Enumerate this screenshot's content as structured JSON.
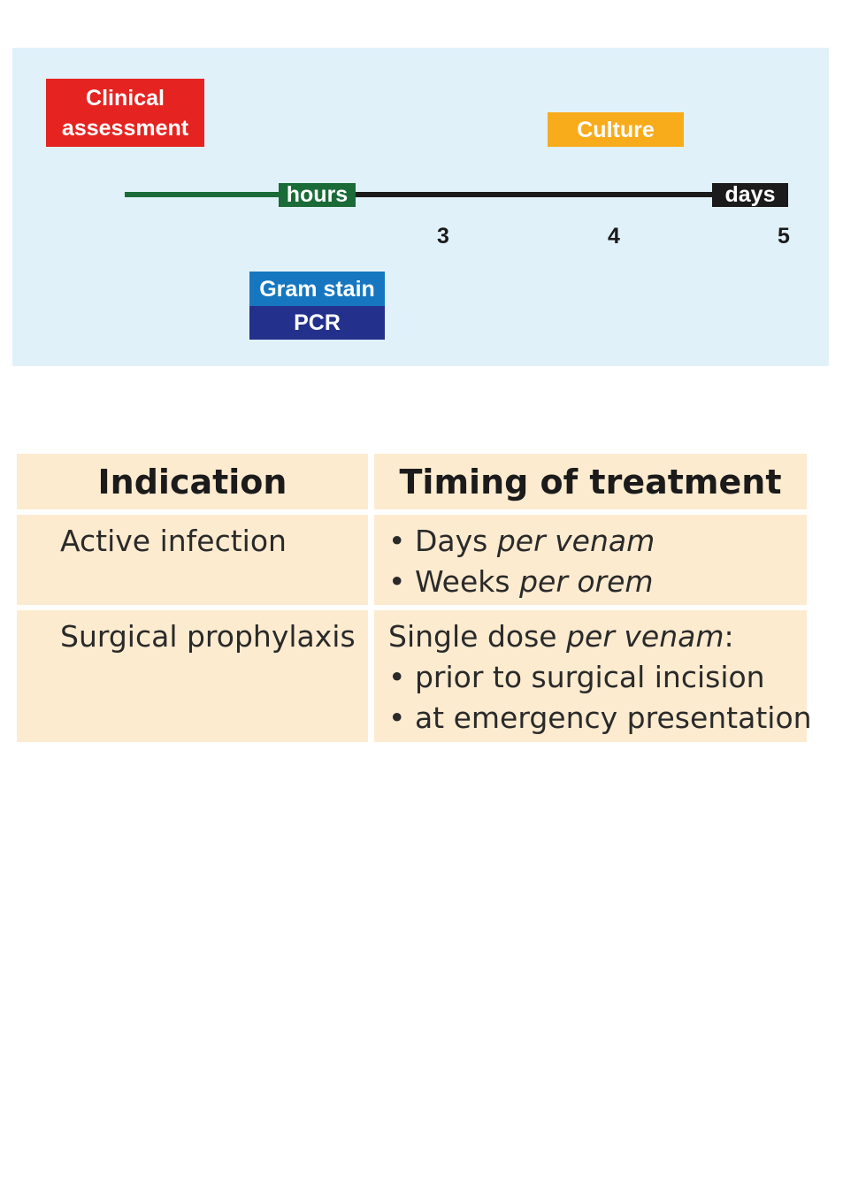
{
  "timeline": {
    "clinical": [
      "Clinical",
      "assessment"
    ],
    "culture": "Culture",
    "hours": "hours",
    "days": "days",
    "ticks": [
      "3",
      "4",
      "5"
    ],
    "gram_stain": "Gram stain",
    "pcr": "PCR",
    "colors": {
      "clinical": "#e52421",
      "culture": "#f8ab1b",
      "gram": "#1677c0",
      "pcr": "#23308c",
      "hours": "#1a6b38",
      "days": "#1b1b1b"
    }
  },
  "table": {
    "headers": [
      "Indication",
      "Timing of treatment"
    ],
    "rows": [
      {
        "indication": "Active infection",
        "timing": [
          {
            "pre": "• Days ",
            "it": "per venam",
            "post": ""
          },
          {
            "pre": "• Weeks ",
            "it": "per orem",
            "post": ""
          }
        ]
      },
      {
        "indication": "Surgical prophylaxis",
        "timing": [
          {
            "pre": "Single dose ",
            "it": "per venam",
            "post": ":"
          },
          {
            "pre": "• prior to surgical incision",
            "it": "",
            "post": ""
          },
          {
            "pre": "• at emergency presentation",
            "it": "",
            "post": ""
          }
        ]
      }
    ]
  }
}
